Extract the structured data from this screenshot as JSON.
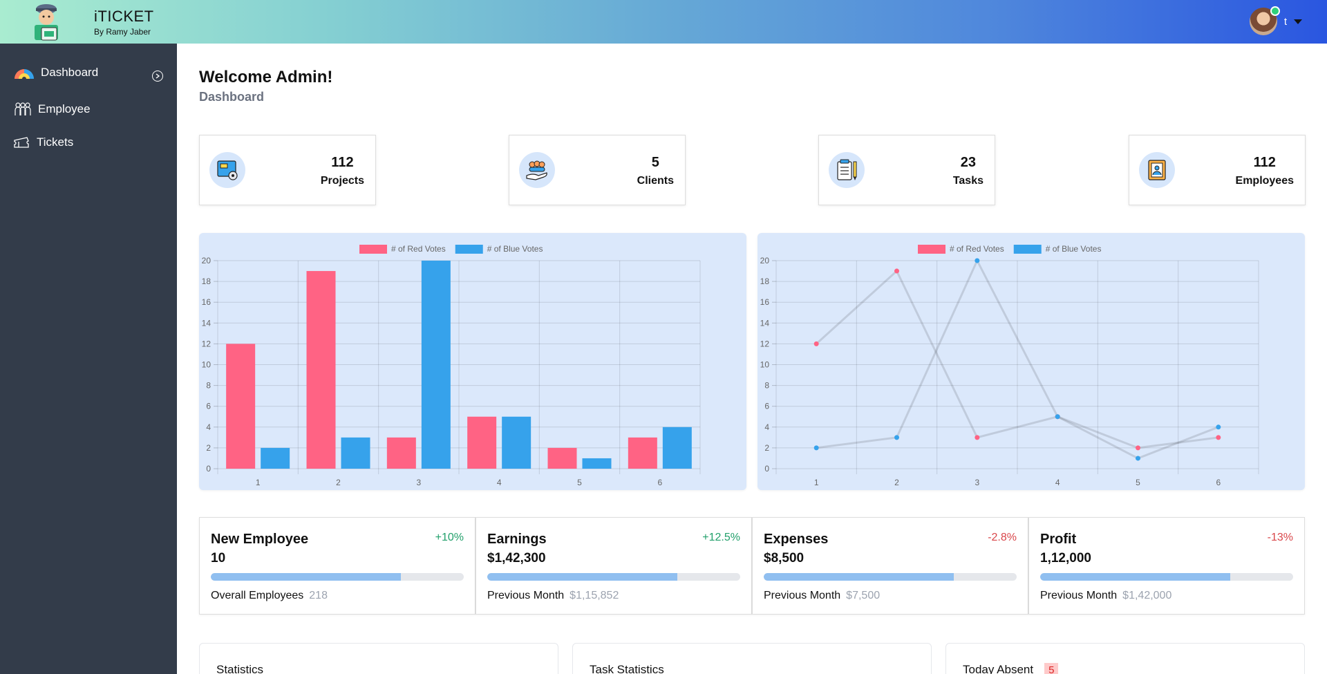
{
  "header": {
    "app_title": "iTICKET",
    "subtitle": "By Ramy Jaber",
    "user_initial": "t"
  },
  "sidebar": {
    "items": [
      {
        "label": "Dashboard"
      },
      {
        "label": "Employee"
      },
      {
        "label": "Tickets"
      }
    ]
  },
  "page": {
    "title": "Welcome Admin!",
    "subtitle": "Dashboard"
  },
  "stats": [
    {
      "value": "112",
      "label": "Projects"
    },
    {
      "value": "5",
      "label": "Clients"
    },
    {
      "value": "23",
      "label": "Tasks"
    },
    {
      "value": "112",
      "label": "Employees"
    }
  ],
  "colors": {
    "red": "#ff6384",
    "blue": "#36a2eb",
    "positive": "#22a06b",
    "negative": "#d9464a"
  },
  "chart_data": [
    {
      "type": "bar",
      "categories": [
        "1",
        "2",
        "3",
        "4",
        "5",
        "6"
      ],
      "series": [
        {
          "name": "# of Red Votes",
          "values": [
            12,
            19,
            3,
            5,
            2,
            3
          ]
        },
        {
          "name": "# of Blue Votes",
          "values": [
            2,
            3,
            20,
            5,
            1,
            4
          ]
        }
      ],
      "ylim": [
        0,
        20
      ],
      "yticks": [
        0,
        2,
        4,
        6,
        8,
        10,
        12,
        14,
        16,
        18,
        20
      ],
      "legend": "top"
    },
    {
      "type": "line",
      "categories": [
        "1",
        "2",
        "3",
        "4",
        "5",
        "6"
      ],
      "series": [
        {
          "name": "# of Red Votes",
          "values": [
            12,
            19,
            3,
            5,
            2,
            3
          ]
        },
        {
          "name": "# of Blue Votes",
          "values": [
            2,
            3,
            20,
            5,
            1,
            4
          ]
        }
      ],
      "ylim": [
        0,
        20
      ],
      "yticks": [
        0,
        2,
        4,
        6,
        8,
        10,
        12,
        14,
        16,
        18,
        20
      ],
      "legend": "top"
    }
  ],
  "metrics": [
    {
      "title": "New Employee",
      "change": "+10%",
      "trend": "up",
      "value": "10",
      "progress": 0.75,
      "foot_label": "Overall Employees",
      "foot_value": "218"
    },
    {
      "title": "Earnings",
      "change": "+12.5%",
      "trend": "up",
      "value": "$1,42,300",
      "progress": 0.75,
      "foot_label": "Previous Month",
      "foot_value": "$1,15,852"
    },
    {
      "title": "Expenses",
      "change": "-2.8%",
      "trend": "down",
      "value": "$8,500",
      "progress": 0.75,
      "foot_label": "Previous Month",
      "foot_value": "$7,500"
    },
    {
      "title": "Profit",
      "change": "-13%",
      "trend": "down",
      "value": "1,12,000",
      "progress": 0.75,
      "foot_label": "Previous Month",
      "foot_value": "$1,42,000"
    }
  ],
  "bottom": [
    {
      "title": "Statistics"
    },
    {
      "title": "Task Statistics"
    },
    {
      "title": "Today Absent",
      "badge": "5"
    }
  ]
}
